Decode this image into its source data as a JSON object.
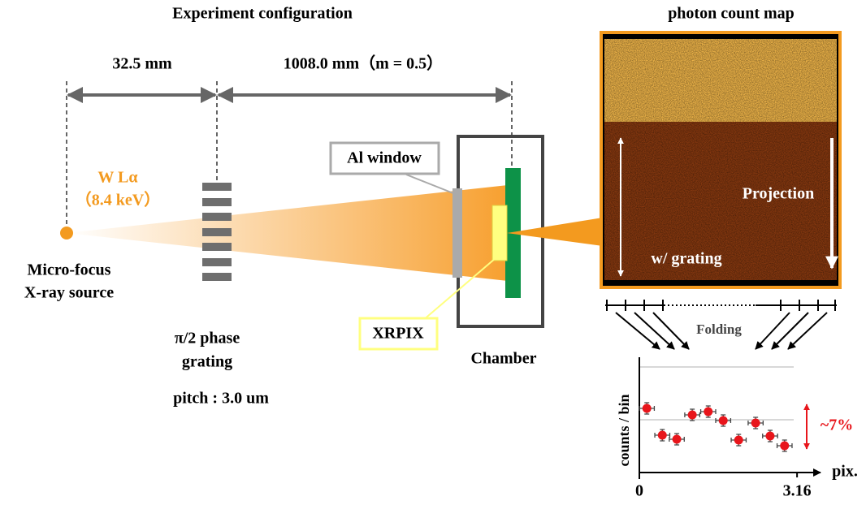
{
  "titles": {
    "config": "Experiment configuration",
    "map": "photon count map"
  },
  "dimensions": {
    "source_to_grating": "32.5 mm",
    "grating_to_detector": "1008.0 mm（m = 0.5）"
  },
  "source": {
    "line": "W Lα",
    "energy": "（8.4 keV）",
    "name_1": "Micro-focus",
    "name_2": "X-ray source"
  },
  "grating": {
    "name_1": "π/2 phase",
    "name_2": "grating",
    "pitch": "pitch : 3.0 um"
  },
  "parts": {
    "window": "Al window",
    "detector": "XRPIX",
    "chamber": "Chamber"
  },
  "map": {
    "projection": "Projection",
    "with_grating": "w/ grating",
    "folding": "Folding"
  },
  "chart_data": {
    "type": "scatter",
    "x_label": "pix.",
    "y_label": "counts / bin",
    "annotation": "~7%",
    "x": [
      0.15,
      0.46,
      0.75,
      1.06,
      1.38,
      1.68,
      1.99,
      2.33,
      2.62,
      2.91
    ],
    "values": [
      79,
      46,
      41,
      71,
      75,
      64,
      40,
      61,
      45,
      33
    ],
    "xerr": 0.15,
    "yerr": 7,
    "color": "#e8151b",
    "xlim": [
      0,
      3.63
    ],
    "ylim": [
      0,
      140
    ],
    "xticks": [
      0,
      3.16
    ]
  }
}
